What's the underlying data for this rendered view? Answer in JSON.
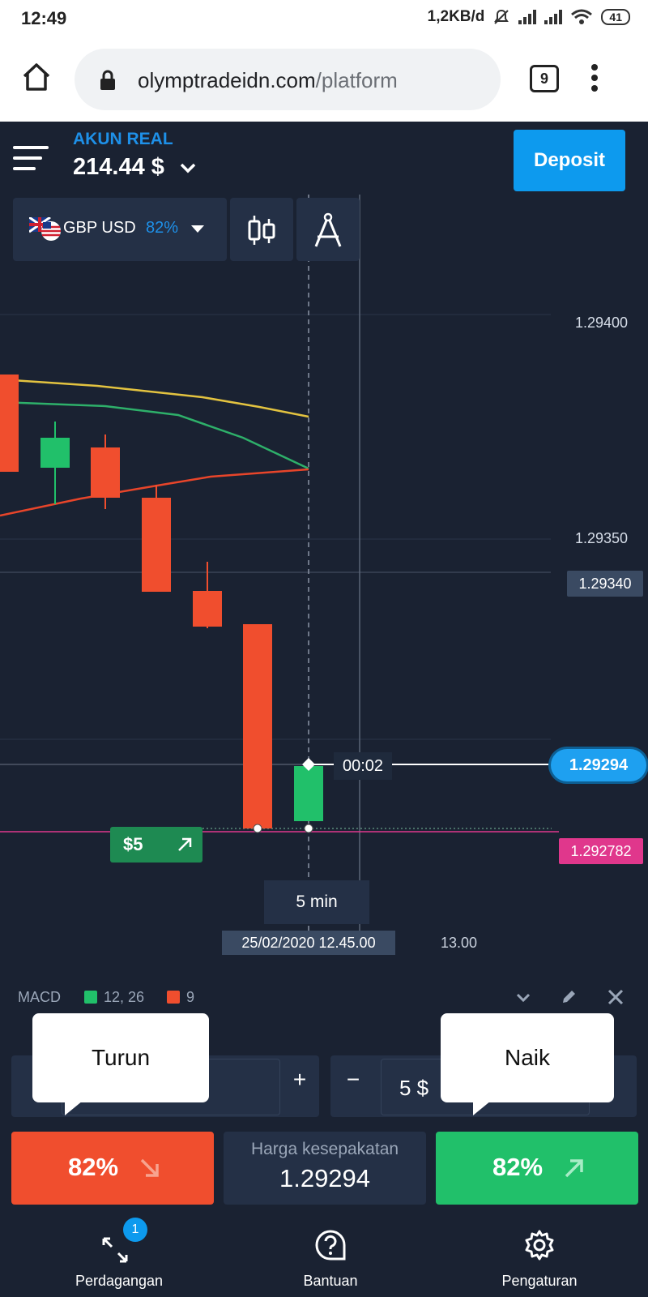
{
  "status": {
    "time": "12:49",
    "speed": "1,2KB/d",
    "battery": "41"
  },
  "browser": {
    "url_domain": "olymptradeidn.com",
    "url_path": "/platform",
    "tab_count": "9"
  },
  "header": {
    "account_type": "AKUN REAL",
    "balance": "214.44 $",
    "deposit_label": "Deposit"
  },
  "asset": {
    "name": "GBP USD",
    "payout": "82%"
  },
  "chart": {
    "price_labels": [
      "1.29400",
      "1.29350",
      "1.29340"
    ],
    "current_price": "1.29294",
    "entry_price": "1.292782",
    "countdown": "00:02",
    "trade_badge": "$5",
    "timeframe": "5 min",
    "crosshair_time": "25/02/2020 12.45.00",
    "time_label": "13.00"
  },
  "chart_data": {
    "type": "candlestick",
    "ylim": [
      1.2926,
      1.2946
    ],
    "candles": [
      {
        "open": 1.29385,
        "close": 1.29362,
        "color": "red"
      },
      {
        "open": 1.29358,
        "close": 1.29365,
        "color": "green"
      },
      {
        "open": 1.29365,
        "close": 1.29353,
        "color": "red"
      },
      {
        "open": 1.29353,
        "close": 1.29331,
        "color": "red"
      },
      {
        "open": 1.29331,
        "close": 1.29322,
        "color": "red"
      },
      {
        "open": 1.29322,
        "close": 1.29278,
        "color": "red"
      },
      {
        "open": 1.2928,
        "close": 1.29294,
        "color": "green"
      }
    ]
  },
  "indicator": {
    "name": "MACD",
    "fast": "12, 26",
    "signal": "9"
  },
  "trade": {
    "tooltip_down": "Turun",
    "tooltip_up": "Naik",
    "amount": "5 $",
    "plus": "+",
    "minus": "−",
    "down_pct": "82%",
    "up_pct": "82%",
    "agreement_label": "Harga kesepakatan",
    "agreement_price": "1.29294"
  },
  "nav": {
    "trade": "Perdagangan",
    "trade_badge": "1",
    "help": "Bantuan",
    "settings": "Pengaturan"
  }
}
